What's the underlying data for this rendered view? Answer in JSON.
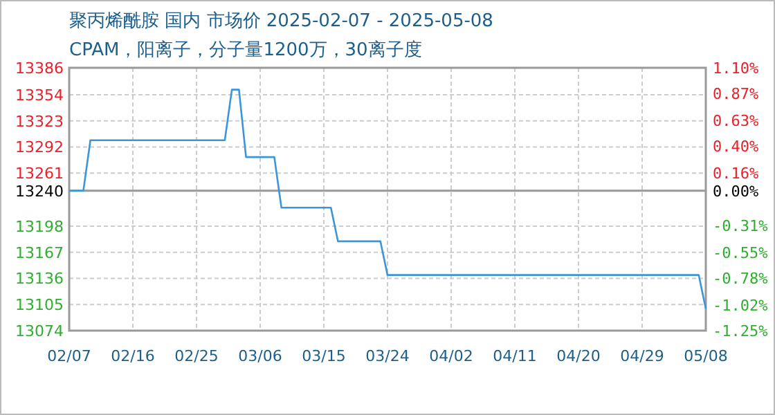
{
  "chart_data": {
    "type": "line",
    "title": "聚丙烯酰胺 国内 市场价 2025-02-07 - 2025-05-08",
    "subtitle": "CPAM，阳离子，分子量1200万，30离子度",
    "x": [
      "2025-02-07",
      "2025-02-09",
      "2025-02-10",
      "2025-03-01",
      "2025-03-02",
      "2025-03-03",
      "2025-03-04",
      "2025-03-08",
      "2025-03-09",
      "2025-03-16",
      "2025-03-17",
      "2025-03-23",
      "2025-03-24",
      "2025-05-07",
      "2025-05-08"
    ],
    "series": [
      {
        "color": "#3a96d8",
        "values": [
          13240,
          13240,
          13300,
          13300,
          13360,
          13360,
          13280,
          13280,
          13220,
          13220,
          13180,
          13180,
          13140,
          13140,
          13100
        ]
      }
    ],
    "xlim": [
      "2025-02-07",
      "2025-05-08"
    ],
    "xticks": [
      {
        "value": "2025-02-07",
        "label": "02/07"
      },
      {
        "value": "2025-02-16",
        "label": "02/16"
      },
      {
        "value": "2025-02-25",
        "label": "02/25"
      },
      {
        "value": "2025-03-06",
        "label": "03/06"
      },
      {
        "value": "2025-03-15",
        "label": "03/15"
      },
      {
        "value": "2025-03-24",
        "label": "03/24"
      },
      {
        "value": "2025-04-02",
        "label": "04/02"
      },
      {
        "value": "2025-04-11",
        "label": "04/11"
      },
      {
        "value": "2025-04-20",
        "label": "04/20"
      },
      {
        "value": "2025-04-29",
        "label": "04/29"
      },
      {
        "value": "2025-05-08",
        "label": "05/08"
      }
    ],
    "ylim": [
      13074,
      13386
    ],
    "yticks": [
      13074,
      13105,
      13136,
      13167,
      13198,
      13240,
      13261,
      13292,
      13323,
      13354,
      13386
    ],
    "y2lim": [
      -1.25,
      1.1
    ],
    "y2ticks": [
      {
        "value": -1.25,
        "label": "-1.25%"
      },
      {
        "value": -1.02,
        "label": "-1.02%"
      },
      {
        "value": -0.78,
        "label": "-0.78%"
      },
      {
        "value": -0.55,
        "label": "-0.55%"
      },
      {
        "value": -0.31,
        "label": "-0.31%"
      },
      {
        "value": 0,
        "label": "0.00%"
      },
      {
        "value": 0.16,
        "label": "0.16%"
      },
      {
        "value": 0.4,
        "label": "0.40%"
      },
      {
        "value": 0.63,
        "label": "0.63%"
      },
      {
        "value": 0.87,
        "label": "0.87%"
      },
      {
        "value": 1.1,
        "label": "1.10%"
      }
    ],
    "ref_lines": [
      {
        "axis": "y",
        "value": 13240,
        "color": "#999999"
      }
    ],
    "grid": true,
    "line_style": "solid",
    "marker": "none"
  }
}
